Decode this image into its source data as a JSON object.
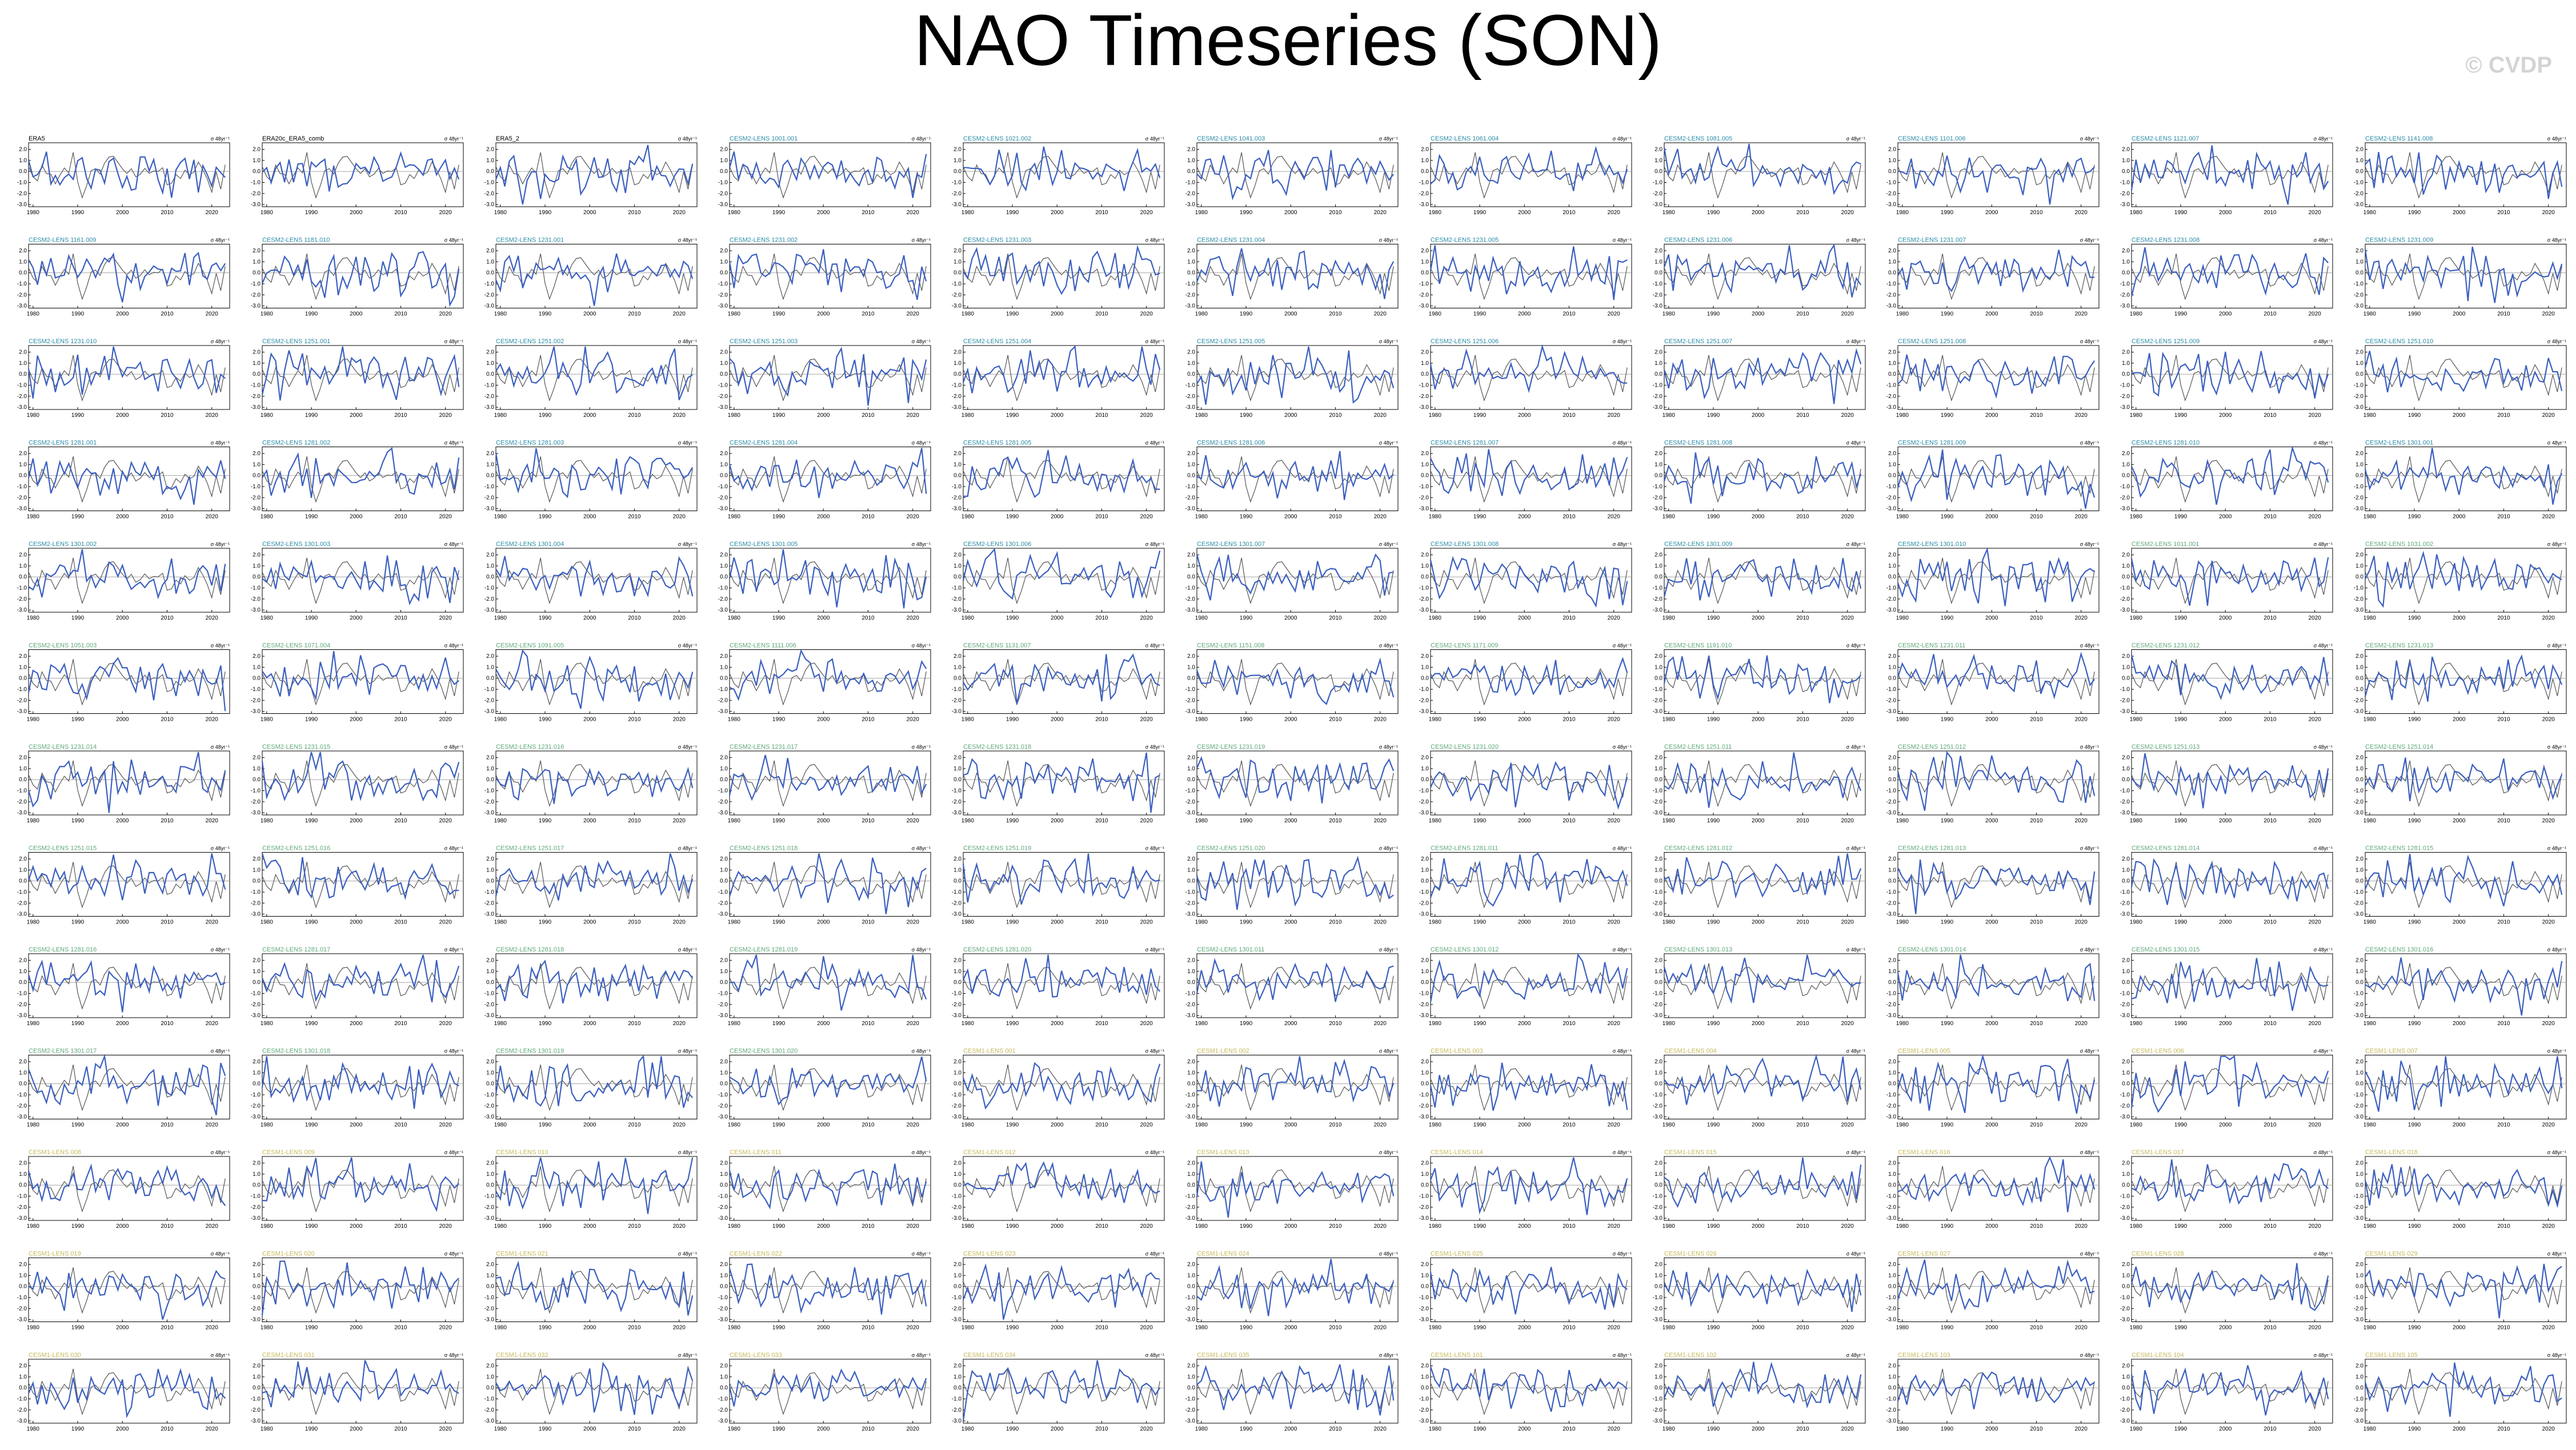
{
  "page": {
    "title": "NAO Timeseries (SON)",
    "watermark": "© CVDP"
  },
  "chart_data": {
    "type": "line",
    "grid_rows": 13,
    "grid_cols": 11,
    "units_label": "σ 48yr⁻¹",
    "x_ticks": [
      1980,
      1990,
      2000,
      2010,
      2020
    ],
    "y_ticks": [
      "2.0",
      "1.0",
      "0.0",
      "-1.0",
      "-2.0",
      "-3.0"
    ],
    "xlim": [
      1979,
      2024
    ],
    "ylim": [
      -3.2,
      2.6
    ],
    "series": [
      {
        "name": "member",
        "color": "#3b5fc0"
      },
      {
        "name": "observed",
        "color": "#555555"
      }
    ],
    "panels": [
      {
        "name": "ERA5",
        "color": "#000000"
      },
      {
        "name": "ERA20c_ERA5_comb",
        "color": "#000000"
      },
      {
        "name": "ERA5_2",
        "color": "#000000"
      },
      {
        "name": "CESM2-LENS 1001.001",
        "color": "#2a8ca8"
      },
      {
        "name": "CESM2-LENS 1021.002",
        "color": "#2a8ca8"
      },
      {
        "name": "CESM2-LENS 1041.003",
        "color": "#2a8ca8"
      },
      {
        "name": "CESM2-LENS 1061.004",
        "color": "#2a8ca8"
      },
      {
        "name": "CESM2-LENS 1081.005",
        "color": "#2a8ca8"
      },
      {
        "name": "CESM2-LENS 1101.006",
        "color": "#2a8ca8"
      },
      {
        "name": "CESM2-LENS 1121.007",
        "color": "#2a8ca8"
      },
      {
        "name": "CESM2-LENS 1141.008",
        "color": "#2a8ca8"
      },
      {
        "name": "CESM2-LENS 1161.009",
        "color": "#2a8ca8"
      },
      {
        "name": "CESM2-LENS 1181.010",
        "color": "#2a8ca8"
      },
      {
        "name": "CESM2-LENS 1231.001",
        "color": "#2a8ca8"
      },
      {
        "name": "CESM2-LENS 1231.002",
        "color": "#2a8ca8"
      },
      {
        "name": "CESM2-LENS 1231.003",
        "color": "#2a8ca8"
      },
      {
        "name": "CESM2-LENS 1231.004",
        "color": "#2a8ca8"
      },
      {
        "name": "CESM2-LENS 1231.005",
        "color": "#2a8ca8"
      },
      {
        "name": "CESM2-LENS 1231.006",
        "color": "#2a8ca8"
      },
      {
        "name": "CESM2-LENS 1231.007",
        "color": "#2a8ca8"
      },
      {
        "name": "CESM2-LENS 1231.008",
        "color": "#2a8ca8"
      },
      {
        "name": "CESM2-LENS 1231.009",
        "color": "#2a8ca8"
      },
      {
        "name": "CESM2-LENS 1231.010",
        "color": "#2a8ca8"
      },
      {
        "name": "CESM2-LENS 1251.001",
        "color": "#2a8ca8"
      },
      {
        "name": "CESM2-LENS 1251.002",
        "color": "#2a8ca8"
      },
      {
        "name": "CESM2-LENS 1251.003",
        "color": "#2a8ca8"
      },
      {
        "name": "CESM2-LENS 1251.004",
        "color": "#2a8ca8"
      },
      {
        "name": "CESM2-LENS 1251.005",
        "color": "#2a8ca8"
      },
      {
        "name": "CESM2-LENS 1251.006",
        "color": "#2a8ca8"
      },
      {
        "name": "CESM2-LENS 1251.007",
        "color": "#2a8ca8"
      },
      {
        "name": "CESM2-LENS 1251.008",
        "color": "#2a8ca8"
      },
      {
        "name": "CESM2-LENS 1251.009",
        "color": "#2a8ca8"
      },
      {
        "name": "CESM2-LENS 1251.010",
        "color": "#2a8ca8"
      },
      {
        "name": "CESM2-LENS 1281.001",
        "color": "#2a8ca8"
      },
      {
        "name": "CESM2-LENS 1281.002",
        "color": "#2a8ca8"
      },
      {
        "name": "CESM2-LENS 1281.003",
        "color": "#2a8ca8"
      },
      {
        "name": "CESM2-LENS 1281.004",
        "color": "#2a8ca8"
      },
      {
        "name": "CESM2-LENS 1281.005",
        "color": "#2a8ca8"
      },
      {
        "name": "CESM2-LENS 1281.006",
        "color": "#2a8ca8"
      },
      {
        "name": "CESM2-LENS 1281.007",
        "color": "#2a8ca8"
      },
      {
        "name": "CESM2-LENS 1281.008",
        "color": "#2a8ca8"
      },
      {
        "name": "CESM2-LENS 1281.009",
        "color": "#2a8ca8"
      },
      {
        "name": "CESM2-LENS 1281.010",
        "color": "#2a8ca8"
      },
      {
        "name": "CESM2-LENS 1301.001",
        "color": "#2a8ca8"
      },
      {
        "name": "CESM2-LENS 1301.002",
        "color": "#2a8ca8"
      },
      {
        "name": "CESM2-LENS 1301.003",
        "color": "#2a8ca8"
      },
      {
        "name": "CESM2-LENS 1301.004",
        "color": "#2a8ca8"
      },
      {
        "name": "CESM2-LENS 1301.005",
        "color": "#2a8ca8"
      },
      {
        "name": "CESM2-LENS 1301.006",
        "color": "#2a8ca8"
      },
      {
        "name": "CESM2-LENS 1301.007",
        "color": "#2a8ca8"
      },
      {
        "name": "CESM2-LENS 1301.008",
        "color": "#2a8ca8"
      },
      {
        "name": "CESM2-LENS 1301.009",
        "color": "#2a8ca8"
      },
      {
        "name": "CESM2-LENS 1301.010",
        "color": "#2a8ca8"
      },
      {
        "name": "CESM2-LENS 1011.001",
        "color": "#5fa87a"
      },
      {
        "name": "CESM2-LENS 1031.002",
        "color": "#5fa87a"
      },
      {
        "name": "CESM2-LENS 1051.003",
        "color": "#5fa87a"
      },
      {
        "name": "CESM2-LENS 1071.004",
        "color": "#5fa87a"
      },
      {
        "name": "CESM2-LENS 1091.005",
        "color": "#5fa87a"
      },
      {
        "name": "CESM2-LENS 1111.006",
        "color": "#5fa87a"
      },
      {
        "name": "CESM2-LENS 1131.007",
        "color": "#5fa87a"
      },
      {
        "name": "CESM2-LENS 1151.008",
        "color": "#5fa87a"
      },
      {
        "name": "CESM2-LENS 1171.009",
        "color": "#5fa87a"
      },
      {
        "name": "CESM2-LENS 1191.010",
        "color": "#5fa87a"
      },
      {
        "name": "CESM2-LENS 1231.011",
        "color": "#5fa87a"
      },
      {
        "name": "CESM2-LENS 1231.012",
        "color": "#5fa87a"
      },
      {
        "name": "CESM2-LENS 1231.013",
        "color": "#5fa87a"
      },
      {
        "name": "CESM2-LENS 1231.014",
        "color": "#5fa87a"
      },
      {
        "name": "CESM2-LENS 1231.015",
        "color": "#5fa87a"
      },
      {
        "name": "CESM2-LENS 1231.016",
        "color": "#5fa87a"
      },
      {
        "name": "CESM2-LENS 1231.017",
        "color": "#5fa87a"
      },
      {
        "name": "CESM2-LENS 1231.018",
        "color": "#5fa87a"
      },
      {
        "name": "CESM2-LENS 1231.019",
        "color": "#5fa87a"
      },
      {
        "name": "CESM2-LENS 1231.020",
        "color": "#5fa87a"
      },
      {
        "name": "CESM2-LENS 1251.011",
        "color": "#5fa87a"
      },
      {
        "name": "CESM2-LENS 1251.012",
        "color": "#5fa87a"
      },
      {
        "name": "CESM2-LENS 1251.013",
        "color": "#5fa87a"
      },
      {
        "name": "CESM2-LENS 1251.014",
        "color": "#5fa87a"
      },
      {
        "name": "CESM2-LENS 1251.015",
        "color": "#5fa87a"
      },
      {
        "name": "CESM2-LENS 1251.016",
        "color": "#5fa87a"
      },
      {
        "name": "CESM2-LENS 1251.017",
        "color": "#5fa87a"
      },
      {
        "name": "CESM2-LENS 1251.018",
        "color": "#5fa87a"
      },
      {
        "name": "CESM2-LENS 1251.019",
        "color": "#5fa87a"
      },
      {
        "name": "CESM2-LENS 1251.020",
        "color": "#5fa87a"
      },
      {
        "name": "CESM2-LENS 1281.011",
        "color": "#5fa87a"
      },
      {
        "name": "CESM2-LENS 1281.012",
        "color": "#5fa87a"
      },
      {
        "name": "CESM2-LENS 1281.013",
        "color": "#5fa87a"
      },
      {
        "name": "CESM2-LENS 1281.014",
        "color": "#5fa87a"
      },
      {
        "name": "CESM2-LENS 1281.015",
        "color": "#5fa87a"
      },
      {
        "name": "CESM2-LENS 1281.016",
        "color": "#5fa87a"
      },
      {
        "name": "CESM2-LENS 1281.017",
        "color": "#5fa87a"
      },
      {
        "name": "CESM2-LENS 1281.018",
        "color": "#5fa87a"
      },
      {
        "name": "CESM2-LENS 1281.019",
        "color": "#5fa87a"
      },
      {
        "name": "CESM2-LENS 1281.020",
        "color": "#5fa87a"
      },
      {
        "name": "CESM2-LENS 1301.011",
        "color": "#5fa87a"
      },
      {
        "name": "CESM2-LENS 1301.012",
        "color": "#5fa87a"
      },
      {
        "name": "CESM2-LENS 1301.013",
        "color": "#5fa87a"
      },
      {
        "name": "CESM2-LENS 1301.014",
        "color": "#5fa87a"
      },
      {
        "name": "CESM2-LENS 1301.015",
        "color": "#5fa87a"
      },
      {
        "name": "CESM2-LENS 1301.016",
        "color": "#5fa87a"
      },
      {
        "name": "CESM2-LENS 1301.017",
        "color": "#5fa87a"
      },
      {
        "name": "CESM2-LENS 1301.018",
        "color": "#5fa87a"
      },
      {
        "name": "CESM2-LENS 1301.019",
        "color": "#5fa87a"
      },
      {
        "name": "CESM2-LENS 1301.020",
        "color": "#5fa87a"
      },
      {
        "name": "CESM1-LENS 001",
        "color": "#c8b85a"
      },
      {
        "name": "CESM1-LENS 002",
        "color": "#c8b85a"
      },
      {
        "name": "CESM1-LENS 003",
        "color": "#c8b85a"
      },
      {
        "name": "CESM1-LENS 004",
        "color": "#c8b85a"
      },
      {
        "name": "CESM1-LENS 005",
        "color": "#c8b85a"
      },
      {
        "name": "CESM1-LENS 006",
        "color": "#c8b85a"
      },
      {
        "name": "CESM1-LENS 007",
        "color": "#c8b85a"
      },
      {
        "name": "CESM1-LENS 008",
        "color": "#c8b85a"
      },
      {
        "name": "CESM1-LENS 009",
        "color": "#c8b85a"
      },
      {
        "name": "CESM1-LENS 010",
        "color": "#c8b85a"
      },
      {
        "name": "CESM1-LENS 011",
        "color": "#c8b85a"
      },
      {
        "name": "CESM1-LENS 012",
        "color": "#c8b85a"
      },
      {
        "name": "CESM1-LENS 013",
        "color": "#c8b85a"
      },
      {
        "name": "CESM1-LENS 014",
        "color": "#c8b85a"
      },
      {
        "name": "CESM1-LENS 015",
        "color": "#c8b85a"
      },
      {
        "name": "CESM1-LENS 016",
        "color": "#c8b85a"
      },
      {
        "name": "CESM1-LENS 017",
        "color": "#c8b85a"
      },
      {
        "name": "CESM1-LENS 018",
        "color": "#c8b85a"
      },
      {
        "name": "CESM1-LENS 019",
        "color": "#c8b85a"
      },
      {
        "name": "CESM1-LENS 020",
        "color": "#c8b85a"
      },
      {
        "name": "CESM1-LENS 021",
        "color": "#c8b85a"
      },
      {
        "name": "CESM1-LENS 022",
        "color": "#c8b85a"
      },
      {
        "name": "CESM1-LENS 023",
        "color": "#c8b85a"
      },
      {
        "name": "CESM1-LENS 024",
        "color": "#c8b85a"
      },
      {
        "name": "CESM1-LENS 025",
        "color": "#c8b85a"
      },
      {
        "name": "CESM1-LENS 026",
        "color": "#c8b85a"
      },
      {
        "name": "CESM1-LENS 027",
        "color": "#c8b85a"
      },
      {
        "name": "CESM1-LENS 028",
        "color": "#c8b85a"
      },
      {
        "name": "CESM1-LENS 029",
        "color": "#c8b85a"
      },
      {
        "name": "CESM1-LENS 030",
        "color": "#c8b85a"
      },
      {
        "name": "CESM1-LENS 031",
        "color": "#c8b85a"
      },
      {
        "name": "CESM1-LENS 032",
        "color": "#c8b85a"
      },
      {
        "name": "CESM1-LENS 033",
        "color": "#c8b85a"
      },
      {
        "name": "CESM1-LENS 034",
        "color": "#c8b85a"
      },
      {
        "name": "CESM1-LENS 035",
        "color": "#c8b85a"
      },
      {
        "name": "CESM1-LENS 101",
        "color": "#c8b85a"
      },
      {
        "name": "CESM1-LENS 102",
        "color": "#c8b85a"
      },
      {
        "name": "CESM1-LENS 103",
        "color": "#c8b85a"
      },
      {
        "name": "CESM1-LENS 104",
        "color": "#c8b85a"
      },
      {
        "name": "CESM1-LENS 105",
        "color": "#c8b85a"
      }
    ]
  }
}
